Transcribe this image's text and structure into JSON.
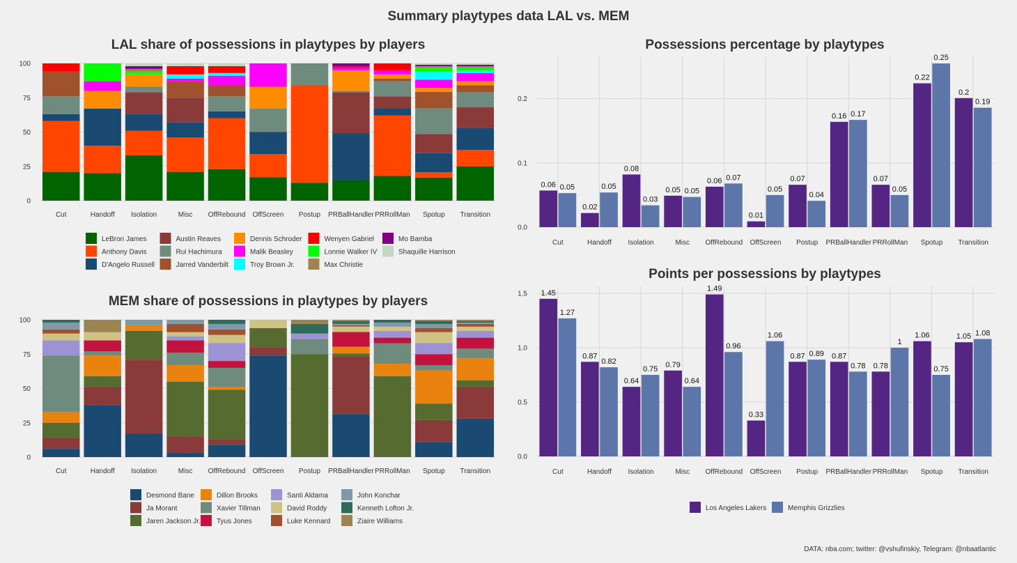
{
  "title": "Summary playtypes data LAL vs. MEM",
  "caption": "DATA: nba.com; twitter: @vshufinskiy, Telegram: @nbaatlantic",
  "chart_data": [
    {
      "id": "lal_share",
      "type": "bar",
      "stacked": true,
      "title": "LAL share of possessions in playtypes by players",
      "categories": [
        "Cut",
        "Handoff",
        "Isolation",
        "Misc",
        "OffRebound",
        "OffScreen",
        "Postup",
        "PRBallHandler",
        "PRRollMan",
        "Spotup",
        "Transition"
      ],
      "ylim": [
        0,
        100
      ],
      "yticks": [
        0,
        25,
        50,
        75,
        100
      ],
      "legend_position": "bottom",
      "series": [
        {
          "name": "LeBron James",
          "color": "#006400",
          "values": [
            21,
            20,
            33,
            21,
            23,
            17,
            13,
            15,
            18,
            17,
            25
          ]
        },
        {
          "name": "Anthony Davis",
          "color": "#ff4500",
          "values": [
            37,
            20,
            18,
            25,
            37,
            17,
            71,
            0,
            44,
            4,
            12
          ]
        },
        {
          "name": "D'Angelo Russell",
          "color": "#1a4971",
          "values": [
            5,
            27,
            12,
            11,
            5,
            16,
            0,
            34,
            5,
            14,
            16
          ]
        },
        {
          "name": "Austin Reaves",
          "color": "#8b3a3a",
          "values": [
            0,
            0,
            16,
            18,
            0,
            0,
            0,
            30,
            9,
            14,
            15
          ]
        },
        {
          "name": "Rui Hachimura",
          "color": "#6e8b7d",
          "values": [
            13,
            0,
            4,
            0,
            11,
            17,
            16,
            1,
            11,
            19,
            11
          ]
        },
        {
          "name": "Jarred Vanderbilt",
          "color": "#a0522d",
          "values": [
            18,
            0,
            0,
            12,
            8,
            0,
            0,
            0,
            2,
            12,
            5
          ]
        },
        {
          "name": "Dennis Schroder",
          "color": "#ff8c00",
          "values": [
            0,
            13,
            9,
            0,
            0,
            16,
            0,
            15,
            3,
            3,
            3
          ]
        },
        {
          "name": "Malik Beasley",
          "color": "#ff00ff",
          "values": [
            0,
            7,
            0,
            2,
            7,
            17,
            0,
            2,
            3,
            6,
            6
          ]
        },
        {
          "name": "Troy Brown Jr.",
          "color": "#00ffff",
          "values": [
            0,
            0,
            0,
            3,
            2,
            0,
            0,
            0,
            0,
            6,
            2
          ]
        },
        {
          "name": "Wenyen Gabriel",
          "color": "#ff0000",
          "values": [
            6,
            0,
            0,
            6,
            5,
            0,
            0,
            1,
            5,
            0,
            0
          ]
        },
        {
          "name": "Lonnie Walker IV",
          "color": "#00ff00",
          "values": [
            0,
            13,
            2,
            0,
            0,
            0,
            0,
            0,
            0,
            3,
            2
          ]
        },
        {
          "name": "Max Christie",
          "color": "#9b8452",
          "values": [
            0,
            0,
            2,
            0,
            0,
            0,
            0,
            0,
            0,
            1,
            1
          ]
        },
        {
          "name": "Mo Bamba",
          "color": "#800080",
          "values": [
            0,
            0,
            2,
            0,
            0,
            0,
            0,
            2,
            0,
            1,
            1
          ]
        },
        {
          "name": "Shaquille Harrison",
          "color": "#c1d8c4",
          "values": [
            0,
            0,
            2,
            2,
            2,
            0,
            0,
            0,
            0,
            1,
            1
          ]
        }
      ]
    },
    {
      "id": "mem_share",
      "type": "bar",
      "stacked": true,
      "title": "MEM share of possessions in playtypes by players",
      "categories": [
        "Cut",
        "Handoff",
        "Isolation",
        "Misc",
        "OffRebound",
        "OffScreen",
        "Postup",
        "PRBallHandler",
        "PRRollMan",
        "Spotup",
        "Transition"
      ],
      "ylim": [
        0,
        100
      ],
      "yticks": [
        0,
        25,
        50,
        75,
        100
      ],
      "legend_position": "bottom",
      "series": [
        {
          "name": "Desmond Bane",
          "color": "#1a4971",
          "values": [
            6,
            38,
            17,
            3,
            9,
            74,
            0,
            32,
            0,
            11,
            28
          ]
        },
        {
          "name": "Ja Morant",
          "color": "#8b3a3a",
          "values": [
            8,
            13,
            54,
            12,
            4,
            6,
            0,
            43,
            0,
            16,
            23
          ]
        },
        {
          "name": "Jaren Jackson Jr.",
          "color": "#556b2f",
          "values": [
            11,
            8,
            21,
            40,
            36,
            14,
            75,
            2,
            59,
            12,
            5
          ]
        },
        {
          "name": "Dillon Brooks",
          "color": "#e9820e",
          "values": [
            8,
            15,
            4,
            12,
            2,
            0,
            0,
            5,
            9,
            24,
            16
          ]
        },
        {
          "name": "Xavier Tillman",
          "color": "#6e8b7d",
          "values": [
            41,
            3,
            0,
            9,
            14,
            0,
            11,
            0,
            15,
            4,
            7
          ]
        },
        {
          "name": "Tyus Jones",
          "color": "#c4123f",
          "values": [
            0,
            8,
            0,
            9,
            5,
            0,
            0,
            11,
            4,
            8,
            8
          ]
        },
        {
          "name": "Santi Aldama",
          "color": "#9c92d4",
          "values": [
            11,
            0,
            0,
            3,
            13,
            0,
            4,
            0,
            5,
            8,
            5
          ]
        },
        {
          "name": "David Roddy",
          "color": "#cfc283",
          "values": [
            5,
            6,
            0,
            3,
            6,
            6,
            0,
            4,
            3,
            8,
            3
          ]
        },
        {
          "name": "Luke Kennard",
          "color": "#a0522d",
          "values": [
            3,
            0,
            0,
            6,
            4,
            0,
            0,
            1,
            0,
            3,
            2
          ]
        },
        {
          "name": "John Konchar",
          "color": "#8198a8",
          "values": [
            5,
            0,
            4,
            3,
            4,
            0,
            0,
            1,
            3,
            3,
            1
          ]
        },
        {
          "name": "Kenneth Lofton Jr.",
          "color": "#2e6b5a",
          "values": [
            2,
            0,
            0,
            0,
            3,
            0,
            7,
            2,
            2,
            2,
            1
          ]
        },
        {
          "name": "Ziaire Williams",
          "color": "#9b8452",
          "values": [
            0,
            9,
            0,
            0,
            0,
            0,
            3,
            1,
            0,
            1,
            1
          ]
        }
      ]
    },
    {
      "id": "poss_pct",
      "type": "bar",
      "title": "Possessions percentage by playtypes",
      "categories": [
        "Cut",
        "Handoff",
        "Isolation",
        "Misc",
        "OffRebound",
        "OffScreen",
        "Postup",
        "PRBallHandler",
        "PRRollMan",
        "Spotup",
        "Transition"
      ],
      "ylim": [
        0,
        0.255
      ],
      "yticks": [
        0.0,
        0.1,
        0.2
      ],
      "series": [
        {
          "name": "Los Angeles Lakers",
          "color": "#552583",
          "values": [
            0.057,
            0.022,
            0.082,
            0.049,
            0.063,
            0.009,
            0.066,
            0.164,
            0.066,
            0.224,
            0.201
          ],
          "labels": [
            "0.06",
            "0.02",
            "0.08",
            "0.05",
            "0.06",
            "0.01",
            "0.07",
            "0.16",
            "0.07",
            "0.22",
            "0.2"
          ]
        },
        {
          "name": "Memphis Grizzlies",
          "color": "#5d76a9",
          "values": [
            0.053,
            0.054,
            0.034,
            0.047,
            0.068,
            0.05,
            0.041,
            0.167,
            0.05,
            0.255,
            0.186
          ],
          "labels": [
            "0.05",
            "0.05",
            "0.03",
            "0.05",
            "0.07",
            "0.05",
            "0.04",
            "0.17",
            "0.05",
            "0.25",
            "0.19"
          ]
        }
      ]
    },
    {
      "id": "ppp",
      "type": "bar",
      "title": "Points per possessions by playtypes",
      "categories": [
        "Cut",
        "Handoff",
        "Isolation",
        "Misc",
        "OffRebound",
        "OffScreen",
        "Postup",
        "PRBallHandler",
        "PRRollMan",
        "Spotup",
        "Transition"
      ],
      "ylim": [
        0,
        1.5
      ],
      "yticks": [
        0.0,
        0.5,
        1.0,
        1.5
      ],
      "legend_position": "bottom",
      "series": [
        {
          "name": "Los Angeles Lakers",
          "color": "#552583",
          "values": [
            1.45,
            0.87,
            0.64,
            0.79,
            1.49,
            0.33,
            0.87,
            0.87,
            0.78,
            1.06,
            1.05
          ],
          "labels": [
            "1.45",
            "0.87",
            "0.64",
            "0.79",
            "1.49",
            "0.33",
            "0.87",
            "0.87",
            "0.78",
            "1.06",
            "1.05"
          ]
        },
        {
          "name": "Memphis Grizzlies",
          "color": "#5d76a9",
          "values": [
            1.27,
            0.82,
            0.75,
            0.64,
            0.96,
            1.06,
            0.89,
            0.78,
            1.0,
            0.75,
            1.08
          ],
          "labels": [
            "1.27",
            "0.82",
            "0.75",
            "0.64",
            "0.96",
            "1.06",
            "0.89",
            "0.78",
            "1",
            "0.75",
            "1.08"
          ]
        }
      ]
    }
  ]
}
